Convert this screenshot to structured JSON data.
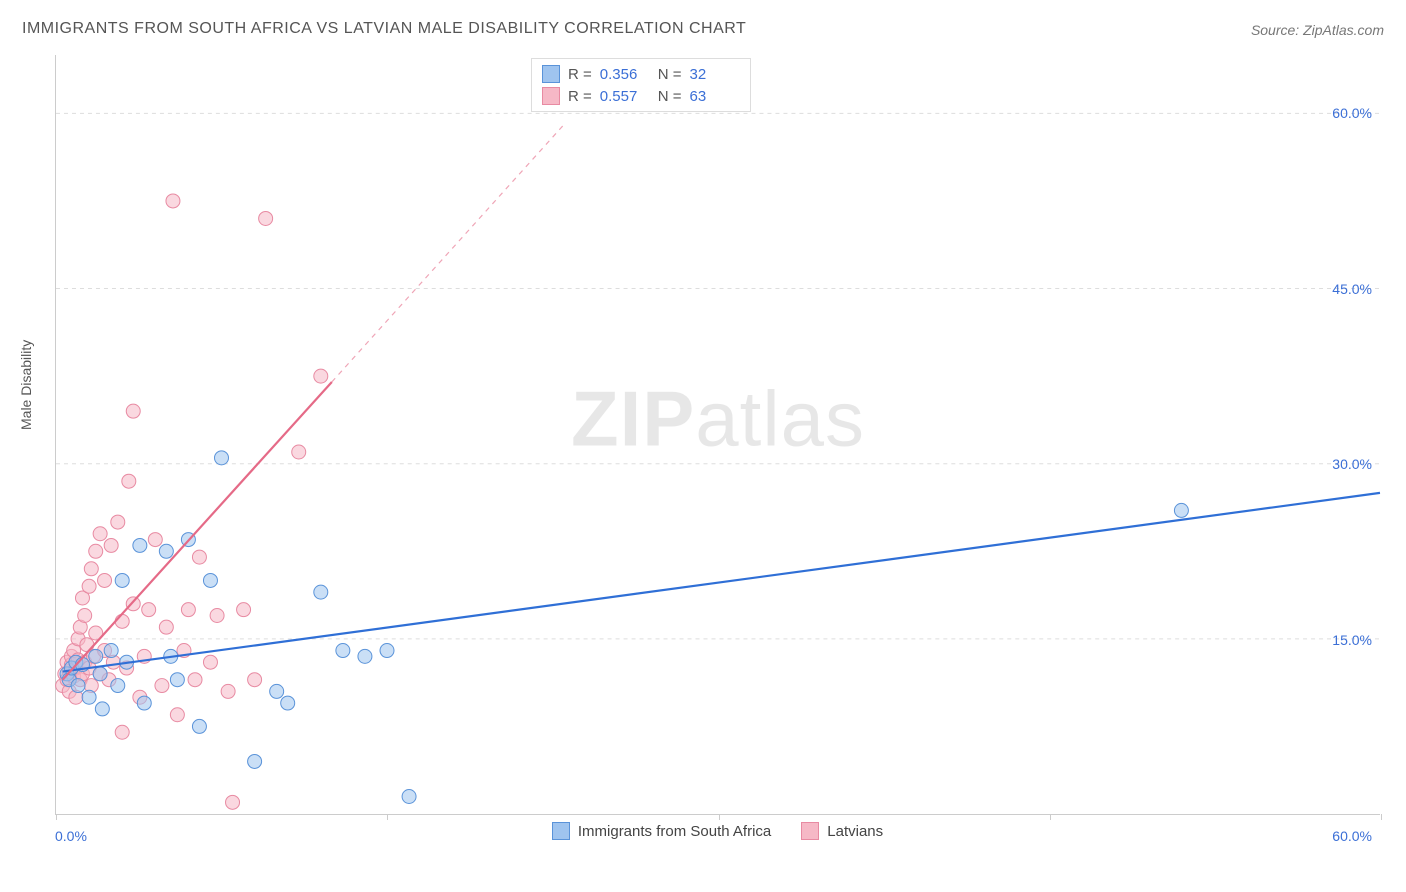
{
  "title": "IMMIGRANTS FROM SOUTH AFRICA VS LATVIAN MALE DISABILITY CORRELATION CHART",
  "source": "Source: ZipAtlas.com",
  "y_axis_label": "Male Disability",
  "watermark": {
    "bold": "ZIP",
    "rest": "atlas"
  },
  "chart": {
    "type": "scatter",
    "xlim": [
      0,
      60
    ],
    "ylim": [
      0,
      65
    ],
    "y_ticks": [
      15,
      30,
      45,
      60
    ],
    "y_tick_labels": [
      "15.0%",
      "30.0%",
      "45.0%",
      "60.0%"
    ],
    "x_ticks": [
      0,
      15,
      30,
      45,
      60
    ],
    "x_start_label": "0.0%",
    "x_end_label": "60.0%",
    "background_color": "#ffffff",
    "grid_color": "#dddddd",
    "axis_color": "#cccccc",
    "tick_label_color": "#3b6fd6",
    "marker_radius": 7,
    "marker_opacity": 0.55,
    "series": [
      {
        "key": "sa",
        "label": "Immigrants from South Africa",
        "color_fill": "#9fc4ef",
        "color_stroke": "#5a93d9",
        "R": "0.356",
        "N": "32",
        "trend": {
          "x1": 0.3,
          "y1": 12.2,
          "x2": 60,
          "y2": 27.5,
          "dash_from_x": 60,
          "color": "#2f6fd6",
          "width": 2.2
        },
        "points": [
          [
            0.5,
            12.0
          ],
          [
            0.6,
            11.5
          ],
          [
            0.7,
            12.5
          ],
          [
            0.9,
            13.0
          ],
          [
            1.0,
            11.0
          ],
          [
            1.2,
            12.8
          ],
          [
            1.5,
            10.0
          ],
          [
            1.8,
            13.5
          ],
          [
            2.0,
            12.0
          ],
          [
            2.1,
            9.0
          ],
          [
            2.5,
            14.0
          ],
          [
            2.8,
            11.0
          ],
          [
            3.0,
            20.0
          ],
          [
            3.2,
            13.0
          ],
          [
            3.8,
            23.0
          ],
          [
            4.0,
            9.5
          ],
          [
            5.0,
            22.5
          ],
          [
            5.2,
            13.5
          ],
          [
            5.5,
            11.5
          ],
          [
            6.0,
            23.5
          ],
          [
            6.5,
            7.5
          ],
          [
            7.0,
            20.0
          ],
          [
            7.5,
            30.5
          ],
          [
            9.0,
            4.5
          ],
          [
            10.0,
            10.5
          ],
          [
            10.5,
            9.5
          ],
          [
            12.0,
            19.0
          ],
          [
            13.0,
            14.0
          ],
          [
            14.0,
            13.5
          ],
          [
            15.0,
            14.0
          ],
          [
            16.0,
            1.5
          ],
          [
            51.0,
            26.0
          ]
        ]
      },
      {
        "key": "lv",
        "label": "Latvians",
        "color_fill": "#f6b8c6",
        "color_stroke": "#e88aa2",
        "R": "0.557",
        "N": "63",
        "trend": {
          "x1": 0.3,
          "y1": 11.5,
          "x2": 12.5,
          "y2": 37.0,
          "dash_from_x": 12.5,
          "dash_x2": 23,
          "dash_y2": 59,
          "color": "#e56a87",
          "width": 2.2
        },
        "points": [
          [
            0.3,
            11.0
          ],
          [
            0.4,
            12.0
          ],
          [
            0.5,
            13.0
          ],
          [
            0.5,
            11.5
          ],
          [
            0.6,
            12.2
          ],
          [
            0.6,
            10.5
          ],
          [
            0.7,
            12.8
          ],
          [
            0.7,
            13.5
          ],
          [
            0.8,
            11.8
          ],
          [
            0.8,
            14.0
          ],
          [
            0.9,
            12.5
          ],
          [
            0.9,
            10.0
          ],
          [
            1.0,
            13.2
          ],
          [
            1.0,
            15.0
          ],
          [
            1.1,
            11.5
          ],
          [
            1.1,
            16.0
          ],
          [
            1.2,
            12.0
          ],
          [
            1.2,
            18.5
          ],
          [
            1.3,
            13.0
          ],
          [
            1.3,
            17.0
          ],
          [
            1.4,
            14.5
          ],
          [
            1.5,
            12.5
          ],
          [
            1.5,
            19.5
          ],
          [
            1.6,
            11.0
          ],
          [
            1.6,
            21.0
          ],
          [
            1.7,
            13.5
          ],
          [
            1.8,
            15.5
          ],
          [
            1.8,
            22.5
          ],
          [
            2.0,
            12.0
          ],
          [
            2.0,
            24.0
          ],
          [
            2.2,
            14.0
          ],
          [
            2.2,
            20.0
          ],
          [
            2.4,
            11.5
          ],
          [
            2.5,
            23.0
          ],
          [
            2.6,
            13.0
          ],
          [
            2.8,
            25.0
          ],
          [
            3.0,
            7.0
          ],
          [
            3.0,
            16.5
          ],
          [
            3.2,
            12.5
          ],
          [
            3.3,
            28.5
          ],
          [
            3.5,
            18.0
          ],
          [
            3.5,
            34.5
          ],
          [
            3.8,
            10.0
          ],
          [
            4.0,
            13.5
          ],
          [
            4.2,
            17.5
          ],
          [
            4.5,
            23.5
          ],
          [
            4.8,
            11.0
          ],
          [
            5.0,
            16.0
          ],
          [
            5.3,
            52.5
          ],
          [
            5.5,
            8.5
          ],
          [
            5.8,
            14.0
          ],
          [
            6.0,
            17.5
          ],
          [
            6.3,
            11.5
          ],
          [
            6.5,
            22.0
          ],
          [
            7.0,
            13.0
          ],
          [
            7.3,
            17.0
          ],
          [
            7.8,
            10.5
          ],
          [
            8.0,
            1.0
          ],
          [
            8.5,
            17.5
          ],
          [
            9.0,
            11.5
          ],
          [
            9.5,
            51.0
          ],
          [
            11.0,
            31.0
          ],
          [
            12.0,
            37.5
          ]
        ]
      }
    ]
  },
  "legend_stats_header": {
    "R_label": "R =",
    "N_label": "N ="
  }
}
